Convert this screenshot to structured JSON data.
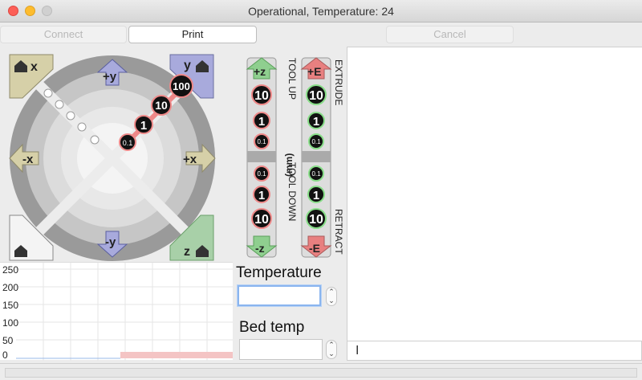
{
  "window": {
    "title": "Operational, Temperature: 24"
  },
  "toolbar": {
    "connect_label": "Connect",
    "print_label": "Print",
    "cancel_label": "Cancel"
  },
  "jog": {
    "home_x": "x",
    "home_y": "y",
    "home_z": "z",
    "plus_y": "+y",
    "minus_y": "-y",
    "minus_x": "-x",
    "plus_x": "+x",
    "steps": [
      "0.1",
      "1",
      "10",
      "100"
    ]
  },
  "z_axis": {
    "plus_z": "+z",
    "minus_z": "-z",
    "up_label": "TOOL UP",
    "down_label": "TOOL DOWN",
    "steps_up": [
      "10",
      "1",
      "0.1"
    ],
    "steps_down": [
      "0.1",
      "1",
      "10"
    ]
  },
  "extruder": {
    "plus_e": "+E",
    "minus_e": "-E",
    "extrude_label": "EXTRUDE",
    "retract_label": "RETRACT",
    "unit_label": "(mm)",
    "steps_up": [
      "10",
      "1",
      "0.1"
    ],
    "steps_down": [
      "0.1",
      "1",
      "10"
    ]
  },
  "temperature": {
    "label": "Temperature",
    "value": ""
  },
  "bed": {
    "label": "Bed temp",
    "value": ""
  },
  "graph": {
    "y_ticks": [
      "250",
      "200",
      "150",
      "100",
      "50",
      "0"
    ]
  },
  "console": {
    "log": "",
    "command": ""
  },
  "colors": {
    "accent": "#8ab5ef",
    "z_green": "#7fbf7f",
    "e_red": "#e07070",
    "y_blue": "#8a8fd4"
  }
}
